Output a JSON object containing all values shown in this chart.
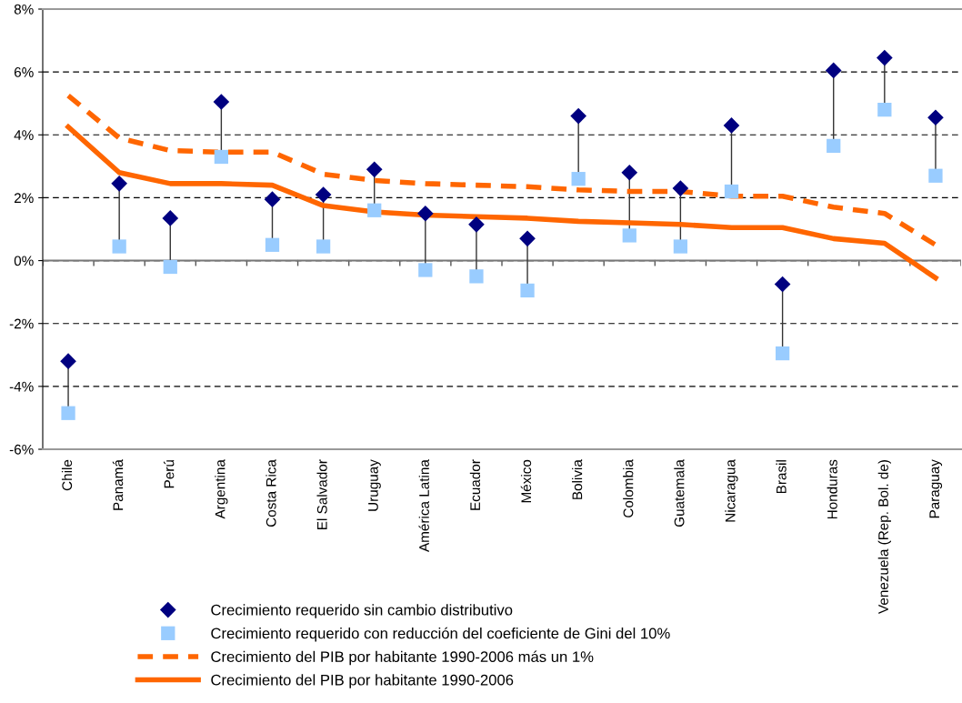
{
  "chart_data": {
    "type": "scatter",
    "categories": [
      "Chile",
      "Panamá",
      "Perú",
      "Argentina",
      "Costa Rica",
      "El Salvador",
      "Uruguay",
      "América Latina",
      "Ecuador",
      "México",
      "Bolivia",
      "Colombia",
      "Guatemala",
      "Nicaragua",
      "Brasil",
      "Honduras",
      "Venezuela (Rep. Bol. de)",
      "Paraguay"
    ],
    "series": [
      {
        "name": "Crecimiento requerido sin cambio distributivo",
        "marker": "diamond",
        "color": "#000080",
        "values": [
          -3.2,
          2.45,
          1.35,
          5.05,
          1.95,
          2.1,
          2.9,
          1.5,
          1.15,
          0.7,
          4.6,
          2.8,
          2.3,
          4.3,
          -0.75,
          6.05,
          6.45,
          4.55
        ]
      },
      {
        "name": "Crecimiento requerido con reducción del coeficiente de Gini del 10%",
        "marker": "square",
        "color": "#99ccff",
        "values": [
          -4.85,
          0.45,
          -0.2,
          3.3,
          0.5,
          0.45,
          1.6,
          -0.3,
          -0.5,
          -0.95,
          2.6,
          0.8,
          0.45,
          2.2,
          -2.95,
          3.65,
          4.8,
          2.7
        ]
      },
      {
        "name": "Crecimiento del PIB por habitante 1990-2006 más un 1%",
        "type": "line",
        "line_style": "dashed",
        "color": "#ff6600",
        "values": [
          5.25,
          3.9,
          3.5,
          3.45,
          3.45,
          2.75,
          2.55,
          2.45,
          2.4,
          2.35,
          2.25,
          2.2,
          2.2,
          2.05,
          2.05,
          1.7,
          1.5,
          0.5
        ]
      },
      {
        "name": "Crecimiento del PIB por habitante 1990-2006",
        "type": "line",
        "line_style": "solid",
        "color": "#ff6600",
        "values": [
          4.25,
          2.8,
          2.45,
          2.45,
          2.4,
          1.75,
          1.55,
          1.45,
          1.4,
          1.35,
          1.25,
          1.2,
          1.15,
          1.05,
          1.05,
          0.7,
          0.55,
          -0.55
        ]
      }
    ],
    "ylim": [
      -6,
      8
    ],
    "yticks": [
      {
        "value": -6,
        "label": "-6%"
      },
      {
        "value": -4,
        "label": "-4%"
      },
      {
        "value": -2,
        "label": "-2%"
      },
      {
        "value": 0,
        "label": "0%"
      },
      {
        "value": 2,
        "label": "2%"
      },
      {
        "value": 4,
        "label": "4%"
      },
      {
        "value": 6,
        "label": "6%"
      },
      {
        "value": 8,
        "label": "8%"
      }
    ],
    "grid": "y",
    "legend": "bottom"
  }
}
